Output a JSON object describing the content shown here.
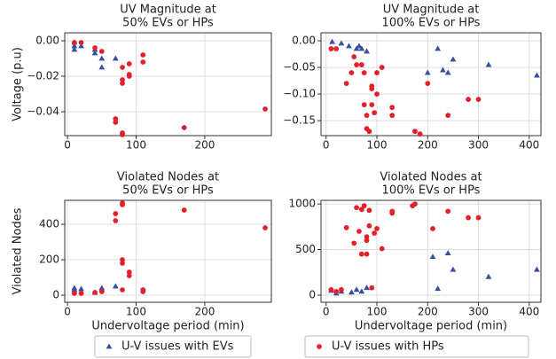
{
  "chart_data": [
    {
      "type": "scatter",
      "title": [
        "UV Magnitude at",
        "50% EVs or HPs"
      ],
      "y_label": "Voltage (p.u)",
      "grid": true,
      "xlim": [
        -4,
        297
      ],
      "xticks": [
        0,
        100,
        200
      ],
      "ylim": [
        -0.0535,
        0.0045
      ],
      "yticks": [
        {
          "value": 0,
          "label": "0.00"
        },
        {
          "value": -0.02,
          "label": "−0.02"
        },
        {
          "value": -0.04,
          "label": "−0.04"
        }
      ],
      "series": [
        {
          "color": "#3a4ea0",
          "marker": "triangle",
          "x": [
            10,
            10,
            10,
            20,
            40,
            40,
            50,
            50,
            70
          ],
          "values": [
            -0.001,
            -0.003,
            -0.005,
            -0.003,
            -0.005,
            -0.007,
            -0.01,
            -0.015,
            -0.01
          ]
        },
        {
          "color": "#e5202a",
          "marker": "circle",
          "x": [
            10,
            20,
            40,
            50,
            70,
            70,
            80,
            80,
            80,
            80,
            80,
            90,
            90,
            90,
            110,
            110,
            170,
            288
          ],
          "values": [
            -0.001,
            -0.001,
            -0.004,
            -0.006,
            -0.044,
            -0.046,
            -0.015,
            -0.022,
            -0.024,
            -0.052,
            -0.053,
            -0.013,
            -0.019,
            -0.02,
            -0.008,
            -0.012,
            -0.049,
            -0.0385
          ]
        }
      ]
    },
    {
      "type": "scatter",
      "title": [
        "UV Magnitude at",
        "100% EVs or HPs"
      ],
      "grid": true,
      "xlim": [
        -10,
        423
      ],
      "xticks": [
        0,
        100,
        200,
        300,
        400
      ],
      "ylim": [
        -0.178,
        0.015
      ],
      "yticks": [
        {
          "value": 0,
          "label": "0.00"
        },
        {
          "value": -0.05,
          "label": "−0.05"
        },
        {
          "value": -0.1,
          "label": "−0.10"
        },
        {
          "value": -0.15,
          "label": "−0.15"
        }
      ],
      "series": [
        {
          "color": "#3a4ea0",
          "marker": "triangle",
          "x": [
            12,
            30,
            45,
            60,
            65,
            70,
            80,
            200,
            220,
            230,
            240,
            250,
            320,
            415
          ],
          "values": [
            -0.002,
            -0.005,
            -0.01,
            -0.015,
            -0.01,
            -0.015,
            -0.02,
            -0.06,
            -0.015,
            -0.055,
            -0.06,
            -0.035,
            -0.045,
            -0.065
          ]
        },
        {
          "color": "#e5202a",
          "marker": "circle",
          "x": [
            10,
            20,
            40,
            50,
            55,
            60,
            70,
            75,
            75,
            80,
            80,
            85,
            90,
            90,
            90,
            95,
            100,
            100,
            110,
            130,
            130,
            175,
            185,
            200,
            240,
            280,
            300
          ],
          "values": [
            -0.015,
            -0.015,
            -0.08,
            -0.06,
            -0.03,
            -0.045,
            -0.045,
            -0.06,
            -0.12,
            -0.14,
            -0.165,
            -0.17,
            -0.09,
            -0.12,
            -0.085,
            -0.135,
            -0.06,
            -0.1,
            -0.05,
            -0.125,
            -0.14,
            -0.17,
            -0.175,
            -0.08,
            -0.14,
            -0.11,
            -0.11
          ]
        }
      ]
    },
    {
      "type": "scatter",
      "title": [
        "Violated Nodes at",
        "50% EVs or HPs"
      ],
      "y_label": "Violated Nodes",
      "x_label": "Undervoltage period (min)",
      "grid": true,
      "xlim": [
        -4,
        297
      ],
      "xticks": [
        0,
        100,
        200
      ],
      "ylim": [
        -40,
        535
      ],
      "yticks": [
        0,
        200,
        400
      ],
      "series": [
        {
          "color": "#3a4ea0",
          "marker": "triangle",
          "x": [
            10,
            10,
            10,
            20,
            20,
            40,
            50,
            50,
            70
          ],
          "values": [
            20,
            40,
            30,
            35,
            20,
            15,
            30,
            40,
            50
          ]
        },
        {
          "color": "#e5202a",
          "marker": "circle",
          "x": [
            10,
            20,
            40,
            50,
            70,
            70,
            80,
            80,
            80,
            80,
            80,
            90,
            90,
            110,
            110,
            170,
            288
          ],
          "values": [
            10,
            10,
            15,
            20,
            420,
            460,
            180,
            200,
            510,
            520,
            30,
            110,
            130,
            20,
            30,
            480,
            380
          ]
        }
      ]
    },
    {
      "type": "scatter",
      "title": [
        "Violated Nodes at",
        "100% EVs or HPs"
      ],
      "x_label": "Undervoltage period (min)",
      "grid": true,
      "xlim": [
        -10,
        423
      ],
      "xticks": [
        0,
        100,
        200,
        300,
        400
      ],
      "ylim": [
        -78,
        1040
      ],
      "yticks": [
        0,
        500,
        1000
      ],
      "series": [
        {
          "color": "#3a4ea0",
          "marker": "triangle",
          "x": [
            10,
            20,
            30,
            50,
            60,
            70,
            80,
            210,
            220,
            240,
            250,
            320,
            415
          ],
          "values": [
            50,
            20,
            40,
            30,
            60,
            40,
            80,
            420,
            70,
            460,
            280,
            200,
            280
          ]
        },
        {
          "color": "#e5202a",
          "marker": "circle",
          "x": [
            10,
            20,
            30,
            40,
            55,
            60,
            65,
            70,
            70,
            75,
            80,
            80,
            80,
            85,
            85,
            90,
            95,
            100,
            110,
            130,
            130,
            170,
            175,
            210,
            240,
            280,
            300
          ],
          "values": [
            60,
            40,
            60,
            740,
            570,
            960,
            700,
            940,
            450,
            980,
            640,
            450,
            600,
            760,
            930,
            80,
            680,
            730,
            510,
            920,
            900,
            980,
            1000,
            730,
            920,
            850,
            850
          ]
        }
      ]
    }
  ],
  "legend": [
    {
      "name": "U-V issues with EVs",
      "color": "#3a4ea0",
      "marker": "triangle"
    },
    {
      "name": "U-V issues with HPs",
      "color": "#e5202a",
      "marker": "circle"
    }
  ]
}
